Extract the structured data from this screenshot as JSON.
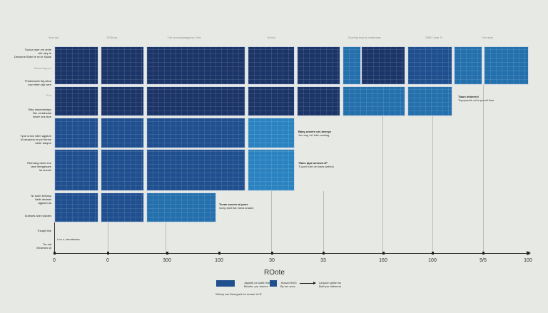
{
  "chart_data": {
    "type": "heatmap",
    "title": "",
    "legend_title": "ROote",
    "column_headers": [
      "Sect tas",
      "SGB tas",
      "Tvd uncomejargnpmc Tnie",
      "Se tnd",
      "Dounbg lerg ta ormamnes",
      "SBNT lyae Tt",
      "Cee tyde"
    ],
    "row_labels": [
      {
        "text": "Tucrca nyer vre amie\ncfic ntcy ie\nDesoene Bnbrl te nn le Saeal",
        "emphasis": true
      },
      {
        "text": "Shwemappon",
        "emphasis": false
      },
      {
        "text": "Preaheoorb Ibg wfoa\nlow elere cap vere",
        "emphasis": true
      },
      {
        "text": "Ehe",
        "emphasis": false
      },
      {
        "text": "Bisy Imaenmdejpr\nBer ut abbsaia\nnnoer ons lsoe",
        "emphasis": true
      },
      {
        "text": "Tyne ornce nllen agplum\nlol anaprna en pel hrnne\nbeter daopm",
        "emphasis": true
      },
      {
        "text": "Rtemang dhne exe\nlane lmmgeoare\nlal aoceel",
        "emphasis": true
      },
      {
        "text": "Nr aoen bnhany\nliarlir abdaas\nagplum as",
        "emphasis": true
      },
      {
        "text": "Durtwes ahe nuwdes",
        "emphasis": true
      },
      {
        "text": "Tneqet Ilne",
        "emphasis": true
      },
      {
        "text": "Tor eal\nEhsehen vil",
        "emphasis": true
      }
    ],
    "x_ticks": [
      "0",
      "0",
      "300",
      "100",
      "30",
      "33",
      "160",
      "100",
      "9/5",
      "100"
    ],
    "x_tick_positions": [
      76,
      151,
      234,
      307,
      381,
      453,
      537,
      606,
      677,
      740
    ],
    "cells": [
      {
        "row": 0,
        "x": 76,
        "w": 62,
        "shade": "dark"
      },
      {
        "row": 0,
        "x": 141,
        "w": 61,
        "shade": "dark"
      },
      {
        "row": 0,
        "x": 205,
        "w": 139,
        "shade": "dark"
      },
      {
        "row": 0,
        "x": 347,
        "w": 66,
        "shade": "dark"
      },
      {
        "row": 0,
        "x": 416,
        "w": 61,
        "shade": "dark"
      },
      {
        "row": 0,
        "x": 480,
        "w": 26,
        "shade": "light"
      },
      {
        "row": 0,
        "x": 506,
        "w": 62,
        "shade": "dark"
      },
      {
        "row": 0,
        "x": 571,
        "w": 63,
        "shade": "mid"
      },
      {
        "row": 0,
        "x": 636,
        "w": 40,
        "shade": "light"
      },
      {
        "row": 0,
        "x": 678,
        "w": 63,
        "shade": "light"
      },
      {
        "row": 1,
        "x": 76,
        "w": 62,
        "shade": "dark"
      },
      {
        "row": 1,
        "x": 141,
        "w": 61,
        "shade": "dark"
      },
      {
        "row": 1,
        "x": 205,
        "w": 139,
        "shade": "dark"
      },
      {
        "row": 1,
        "x": 347,
        "w": 66,
        "shade": "dark"
      },
      {
        "row": 1,
        "x": 416,
        "w": 61,
        "shade": "dark"
      },
      {
        "row": 1,
        "x": 480,
        "w": 88,
        "shade": "light"
      },
      {
        "row": 1,
        "x": 571,
        "w": 63,
        "shade": "light"
      },
      {
        "row": 2,
        "x": 76,
        "w": 62,
        "shade": "mid"
      },
      {
        "row": 2,
        "x": 141,
        "w": 61,
        "shade": "mid"
      },
      {
        "row": 2,
        "x": 205,
        "w": 139,
        "shade": "mid"
      },
      {
        "row": 2,
        "x": 347,
        "w": 66,
        "shade": "bright"
      },
      {
        "row": 3,
        "x": 76,
        "w": 62,
        "shade": "mid"
      },
      {
        "row": 3,
        "x": 141,
        "w": 61,
        "shade": "mid"
      },
      {
        "row": 3,
        "x": 205,
        "w": 139,
        "shade": "mid"
      },
      {
        "row": 3,
        "x": 347,
        "w": 66,
        "shade": "bright"
      },
      {
        "row": 4,
        "x": 76,
        "w": 62,
        "shade": "mid"
      },
      {
        "row": 4,
        "x": 141,
        "w": 61,
        "shade": "mid"
      },
      {
        "row": 4,
        "x": 205,
        "w": 98,
        "shade": "light"
      }
    ],
    "row_bands": [
      {
        "y": 65,
        "h": 54
      },
      {
        "y": 121,
        "h": 42
      },
      {
        "y": 165,
        "h": 43
      },
      {
        "y": 209,
        "h": 59
      },
      {
        "y": 270,
        "h": 42
      }
    ],
    "colors": {
      "dark": "#1c3568",
      "mid": "#1f4f8f",
      "light": "#2470ad",
      "bright": "#2a83c0",
      "background": "#e6e9e4"
    },
    "annotations": [
      {
        "title": "Tlaun lerbernel",
        "text": "Tcpcpeeioh ad in pevoll Ihne",
        "x": 642,
        "y": 133
      },
      {
        "title": "Bany uneere ors beenyz",
        "text": "Jue aug vel Inbn aouliag",
        "x": 418,
        "y": 182
      },
      {
        "title": "Tfane Ippe aeeeuh.JP",
        "text": "Ti goel noel vel naes anbton",
        "x": 418,
        "y": 226
      },
      {
        "title": "Tcoau ssonre al pose",
        "text": "Uong asel tlat viana anaam",
        "x": 307,
        "y": 284
      },
      {
        "title": "",
        "text": "Lon u, laendawea",
        "x": 80,
        "y": 333
      }
    ],
    "legend": [
      {
        "swatch": "mid",
        "label": "Jagtalt) us walle Ilne\nBlonde, pur douem"
      },
      {
        "swatch": "mid",
        "label": "Toasan BNG\nBy ton aucs"
      },
      {
        "swatch": "arrow",
        "label": "Lanpum gelart as\nBwlt pur abbsena"
      }
    ],
    "footnote": "Whicty ran Desegred Im dream ULR.",
    "grid": true
  }
}
